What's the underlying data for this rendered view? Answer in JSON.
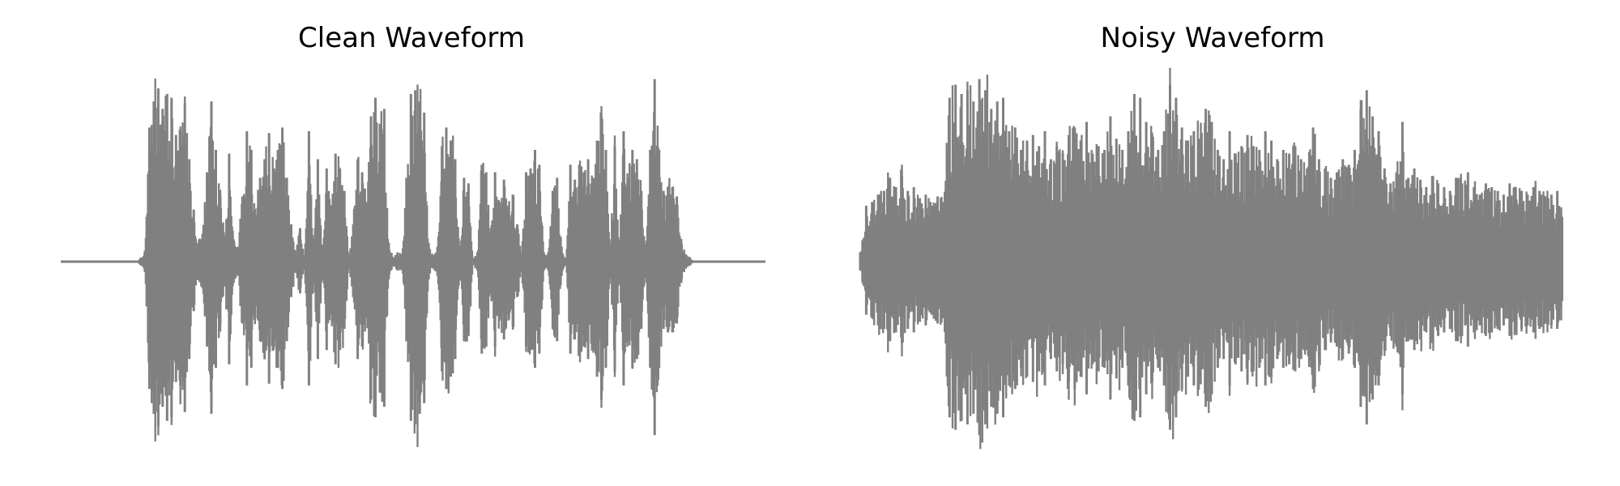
{
  "chart_data": [
    {
      "type": "line",
      "title": "Clean Waveform",
      "xlabel": "",
      "ylabel": "",
      "axes_visible": false,
      "grid": false,
      "ylim": [
        -1,
        1
      ],
      "color": "#808080",
      "series": [
        {
          "values": [
            0,
            0,
            0,
            0,
            0,
            0,
            0,
            0,
            0,
            0,
            0,
            0,
            0,
            0,
            0,
            0,
            0,
            0,
            0.02,
            0.06,
            0.72,
            0.86,
            0.93,
            0.82,
            0.9,
            0.88,
            0.68,
            0.7,
            0.85,
            0.55,
            0.28,
            0.1,
            0.15,
            0.48,
            0.86,
            0.6,
            0.35,
            0.14,
            0.58,
            0.12,
            0.08,
            0.35,
            0.7,
            0.6,
            0.25,
            0.45,
            0.55,
            0.69,
            0.5,
            0.6,
            0.72,
            0.45,
            0.2,
            0.05,
            0.18,
            0.02,
            0.7,
            0.1,
            0.55,
            0.02,
            0.5,
            0.3,
            0.58,
            0.5,
            0.38,
            0.02,
            0.2,
            0.55,
            0.48,
            0.32,
            0.78,
            0.88,
            0.74,
            0.82,
            0.1,
            0.02,
            0.05,
            0.04,
            0.45,
            0.9,
            0.92,
            0.86,
            0.8,
            0.1,
            0.03,
            0.08,
            0.62,
            0.72,
            0.65,
            0.55,
            0.05,
            0.45,
            0.42,
            0.02,
            0.05,
            0.52,
            0.48,
            0.18,
            0.48,
            0.32,
            0.44,
            0.3,
            0.36,
            0.2,
            0.05,
            0.48,
            0.5,
            0.6,
            0.52,
            0.05,
            0.05,
            0.38,
            0.45,
            0.08,
            0.02,
            0.52,
            0.44,
            0.52,
            0.48,
            0.55,
            0.45,
            0.65,
            0.78,
            0.6,
            0.05,
            0.62,
            0.05,
            0.7,
            0.45,
            0.6,
            0.55,
            0.38,
            0.06,
            0.6,
            0.98,
            0.6,
            0.38,
            0.4,
            0.4,
            0.35,
            0.12,
            0.04,
            0.02,
            0,
            0,
            0,
            0,
            0,
            0,
            0,
            0,
            0,
            0,
            0,
            0,
            0,
            0,
            0,
            0,
            0
          ]
        }
      ]
    },
    {
      "type": "line",
      "title": "Noisy Waveform",
      "xlabel": "",
      "ylabel": "",
      "axes_visible": false,
      "grid": false,
      "ylim": [
        -1,
        1
      ],
      "color": "#808080",
      "series": [
        {
          "values": [
            0.05,
            0.3,
            0.32,
            0.36,
            0.38,
            0.45,
            0.4,
            0.46,
            0.38,
            0.4,
            0.34,
            0.36,
            0.3,
            0.35,
            0.32,
            0.88,
            0.95,
            0.9,
            0.92,
            0.86,
            0.98,
            0.92,
            0.82,
            0.86,
            0.88,
            0.7,
            0.72,
            0.6,
            0.65,
            0.68,
            0.62,
            0.7,
            0.55,
            0.62,
            0.58,
            0.68,
            0.72,
            0.65,
            0.75,
            0.58,
            0.62,
            0.6,
            0.78,
            0.66,
            0.6,
            0.7,
            0.9,
            0.88,
            0.75,
            0.68,
            0.6,
            0.7,
            0.95,
            0.88,
            0.72,
            0.65,
            0.7,
            0.66,
            0.82,
            0.75,
            0.6,
            0.55,
            0.7,
            0.58,
            0.62,
            0.68,
            0.62,
            0.6,
            0.7,
            0.65,
            0.55,
            0.6,
            0.58,
            0.62,
            0.55,
            0.5,
            0.72,
            0.55,
            0.5,
            0.45,
            0.48,
            0.55,
            0.52,
            0.6,
            0.82,
            0.92,
            0.78,
            0.7,
            0.5,
            0.42,
            0.48,
            0.75,
            0.45,
            0.5,
            0.44,
            0.4,
            0.46,
            0.42,
            0.4,
            0.38,
            0.45,
            0.42,
            0.48,
            0.4,
            0.36,
            0.42,
            0.4,
            0.38,
            0.36,
            0.42,
            0.4,
            0.38,
            0.36,
            0.4,
            0.38,
            0.35,
            0.36,
            0.38,
            0.35
          ]
        }
      ]
    }
  ]
}
